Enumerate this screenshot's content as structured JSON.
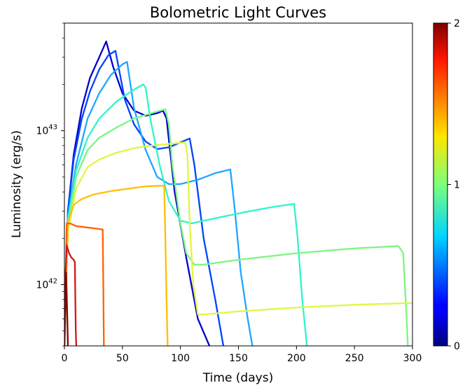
{
  "chart_data": {
    "type": "line",
    "title": "Bolometric Light Curves",
    "xlabel": "Time (days)",
    "ylabel": "Luminosity (erg/s)",
    "xlim": [
      0,
      300
    ],
    "ylim": [
      4e+41,
      5e+43
    ],
    "yscale": "log",
    "grid": false,
    "x_ticks": [
      0,
      50,
      100,
      150,
      200,
      250,
      300
    ],
    "y_major_ticks": [
      1e+42,
      1e+43
    ],
    "y_major_tick_labels": [
      {
        "base": "10",
        "exp": "42"
      },
      {
        "base": "10",
        "exp": "43"
      }
    ],
    "colorbar": {
      "colormap": "jet",
      "ticks": [
        0,
        1,
        2
      ],
      "tick_labels": [
        "0",
        "1",
        "2"
      ]
    },
    "series": [
      {
        "color": "#0000cd",
        "x": [
          0,
          3,
          8,
          15,
          22,
          30,
          36,
          42,
          50,
          60,
          70,
          80,
          85,
          88,
          95,
          105,
          115,
          125
        ],
        "y": [
          4e+41,
          3e+42,
          7e+42,
          1.4e+43,
          2.2e+43,
          3e+43,
          3.8e+43,
          2.6e+43,
          1.75e+43,
          1.35e+43,
          1.25e+43,
          1.3e+43,
          1.35e+43,
          1.2e+43,
          4e+42,
          1.5e+42,
          6e+41,
          4e+41
        ]
      },
      {
        "color": "#0044ff",
        "x": [
          0,
          3,
          8,
          15,
          22,
          30,
          38,
          44,
          52,
          60,
          70,
          80,
          90,
          100,
          108,
          112,
          120,
          130,
          137
        ],
        "y": [
          4e+41,
          3e+42,
          6.5e+42,
          1.2e+43,
          1.8e+43,
          2.5e+43,
          3.1e+43,
          3.3e+43,
          1.6e+43,
          1.1e+43,
          8.5e+42,
          7.6e+42,
          7.8e+42,
          8.4e+42,
          8.9e+42,
          6e+42,
          2e+42,
          8e+41,
          4e+41
        ]
      },
      {
        "color": "#1ea7ff",
        "x": [
          0,
          3,
          10,
          20,
          30,
          40,
          50,
          54,
          60,
          70,
          80,
          90,
          100,
          115,
          130,
          143,
          147,
          152,
          158,
          162
        ],
        "y": [
          4e+41,
          2.8e+42,
          6e+42,
          1.2e+43,
          1.75e+43,
          2.3e+43,
          2.7e+43,
          2.8e+43,
          1.4e+43,
          7.5e+42,
          5e+42,
          4.5e+42,
          4.5e+42,
          4.8e+42,
          5.3e+42,
          5.6e+42,
          3e+42,
          1.2e+42,
          6e+41,
          4e+41
        ]
      },
      {
        "color": "#2ff5c8",
        "x": [
          0,
          3,
          10,
          20,
          30,
          45,
          60,
          68,
          70,
          74,
          82,
          90,
          100,
          110,
          120,
          140,
          160,
          180,
          198,
          201,
          205,
          209
        ],
        "y": [
          4e+41,
          2.6e+42,
          5.5e+42,
          9e+42,
          1.2e+43,
          1.55e+43,
          1.85e+43,
          2e+43,
          1.9e+43,
          1.2e+43,
          6e+42,
          3.5e+42,
          2.6e+42,
          2.5e+42,
          2.6e+42,
          2.8e+42,
          3e+42,
          3.2e+42,
          3.35e+42,
          2e+42,
          8e+41,
          4e+41
        ]
      },
      {
        "color": "#7df582",
        "x": [
          0,
          3,
          10,
          20,
          30,
          45,
          60,
          75,
          87,
          90,
          93,
          100,
          105,
          112,
          120,
          150,
          200,
          250,
          288,
          292,
          295,
          296
        ],
        "y": [
          4e+41,
          2.4e+42,
          5e+42,
          7.5e+42,
          9e+42,
          1.05e+43,
          1.2e+43,
          1.3e+43,
          1.38e+43,
          1.1e+43,
          6e+42,
          2.5e+42,
          1.6e+42,
          1.35e+42,
          1.35e+42,
          1.45e+42,
          1.6e+42,
          1.72e+42,
          1.78e+42,
          1.6e+42,
          6e+41,
          4e+41
        ]
      },
      {
        "color": "#e2f542",
        "x": [
          0,
          3,
          10,
          20,
          30,
          45,
          60,
          75,
          90,
          104,
          106,
          108,
          111,
          115,
          120,
          150,
          200,
          250,
          300
        ],
        "y": [
          4e+41,
          2.2e+42,
          4.2e+42,
          5.8e+42,
          6.5e+42,
          7.2e+42,
          7.7e+42,
          8e+42,
          8.2e+42,
          8.4e+42,
          7e+42,
          2.5e+42,
          1e+42,
          6.4e+41,
          6.4e+41,
          6.7e+41,
          7.1e+41,
          7.4e+41,
          7.6e+41
        ]
      },
      {
        "color": "#ffbf00",
        "x": [
          0,
          3,
          8,
          15,
          25,
          40,
          55,
          70,
          86,
          87,
          88,
          89
        ],
        "y": [
          4e+41,
          2.5e+42,
          3.3e+42,
          3.6e+42,
          3.85e+42,
          4.05e+42,
          4.2e+42,
          4.35e+42,
          4.4e+42,
          2e+42,
          8e+41,
          4e+41
        ]
      },
      {
        "color": "#ff6200",
        "x": [
          0,
          2,
          5,
          10,
          20,
          30,
          33,
          33.5,
          34
        ],
        "y": [
          4e+41,
          2.5e+42,
          2.5e+42,
          2.4e+42,
          2.35e+42,
          2.3e+42,
          2.28e+42,
          1e+42,
          4e+41
        ]
      },
      {
        "color": "#d41616",
        "x": [
          0,
          1,
          2,
          4,
          6,
          8,
          9,
          9.4,
          9.8,
          10.2
        ],
        "y": [
          4e+41,
          1.2e+42,
          1.8e+42,
          1.6e+42,
          1.5e+42,
          1.45e+42,
          1.4e+42,
          8e+41,
          5e+41,
          4e+41
        ]
      },
      {
        "color": "#8b0000",
        "x": [
          0,
          1.5,
          2.5,
          3
        ],
        "y": [
          4e+41,
          1.2e+42,
          6e+41,
          4e+41
        ]
      }
    ]
  }
}
